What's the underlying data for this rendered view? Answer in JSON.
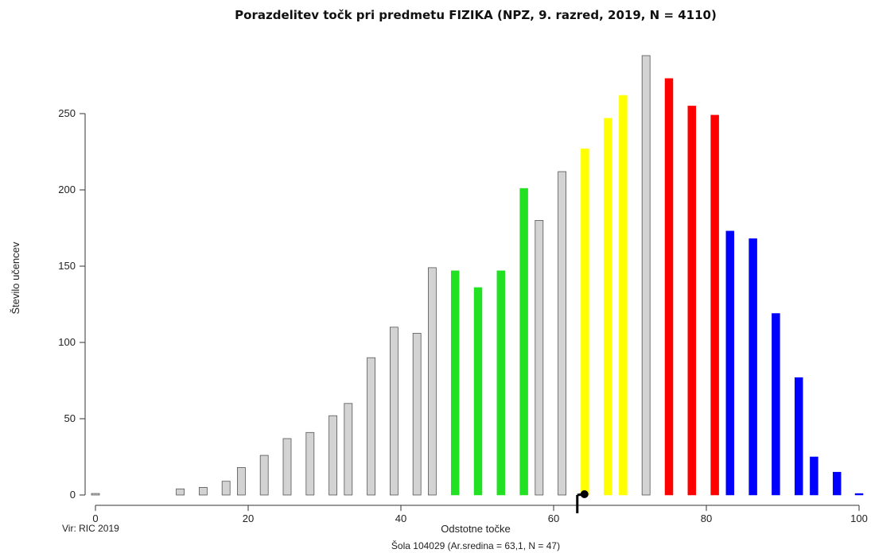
{
  "chart_data": {
    "type": "bar",
    "title": "Porazdelitev točk pri predmetu FIZIKA (NPZ, 9. razred, 2019, N = 4110)",
    "xlabel": "Odstotne točke",
    "ylabel": "Število učencev",
    "xlim": [
      0,
      100
    ],
    "ylim": [
      0,
      290
    ],
    "xticks": [
      0,
      20,
      40,
      60,
      80,
      100
    ],
    "yticks": [
      0,
      50,
      100,
      150,
      200,
      250
    ],
    "grid": false,
    "colors": {
      "gray": "#d3d3d3",
      "green": "#22e022",
      "yellow": "#ffff00",
      "red": "#ff0000",
      "blue": "#0000ff",
      "outline": "#555555"
    },
    "bars": [
      {
        "x": 0.0,
        "value": 1,
        "color": "gray"
      },
      {
        "x": 11.1,
        "value": 4,
        "color": "gray"
      },
      {
        "x": 14.1,
        "value": 5,
        "color": "gray"
      },
      {
        "x": 17.1,
        "value": 9,
        "color": "gray"
      },
      {
        "x": 19.1,
        "value": 18,
        "color": "gray"
      },
      {
        "x": 22.1,
        "value": 26,
        "color": "gray"
      },
      {
        "x": 25.1,
        "value": 37,
        "color": "gray"
      },
      {
        "x": 28.1,
        "value": 41,
        "color": "gray"
      },
      {
        "x": 31.1,
        "value": 52,
        "color": "gray"
      },
      {
        "x": 33.1,
        "value": 60,
        "color": "gray"
      },
      {
        "x": 36.1,
        "value": 90,
        "color": "gray"
      },
      {
        "x": 39.1,
        "value": 110,
        "color": "gray"
      },
      {
        "x": 42.1,
        "value": 106,
        "color": "gray"
      },
      {
        "x": 44.1,
        "value": 149,
        "color": "gray"
      },
      {
        "x": 47.1,
        "value": 147,
        "color": "green"
      },
      {
        "x": 50.1,
        "value": 136,
        "color": "green"
      },
      {
        "x": 53.1,
        "value": 147,
        "color": "green"
      },
      {
        "x": 56.1,
        "value": 201,
        "color": "green"
      },
      {
        "x": 58.1,
        "value": 180,
        "color": "gray"
      },
      {
        "x": 61.1,
        "value": 212,
        "color": "gray"
      },
      {
        "x": 64.1,
        "value": 227,
        "color": "yellow"
      },
      {
        "x": 67.1,
        "value": 247,
        "color": "yellow"
      },
      {
        "x": 69.1,
        "value": 262,
        "color": "yellow"
      },
      {
        "x": 72.1,
        "value": 288,
        "color": "gray"
      },
      {
        "x": 75.1,
        "value": 273,
        "color": "red"
      },
      {
        "x": 78.1,
        "value": 255,
        "color": "red"
      },
      {
        "x": 81.1,
        "value": 249,
        "color": "red"
      },
      {
        "x": 83.1,
        "value": 173,
        "color": "blue"
      },
      {
        "x": 86.1,
        "value": 168,
        "color": "blue"
      },
      {
        "x": 89.1,
        "value": 119,
        "color": "blue"
      },
      {
        "x": 92.1,
        "value": 77,
        "color": "blue"
      },
      {
        "x": 94.1,
        "value": 25,
        "color": "blue"
      },
      {
        "x": 97.1,
        "value": 15,
        "color": "blue"
      },
      {
        "x": 100.0,
        "value": 1,
        "color": "blue"
      }
    ],
    "school_marker": {
      "mean": 63.1
    },
    "source_note": "Vir: RIC 2019",
    "school_note": "Šola 104029 (Ar.sredina = 63,1, N = 47)"
  }
}
